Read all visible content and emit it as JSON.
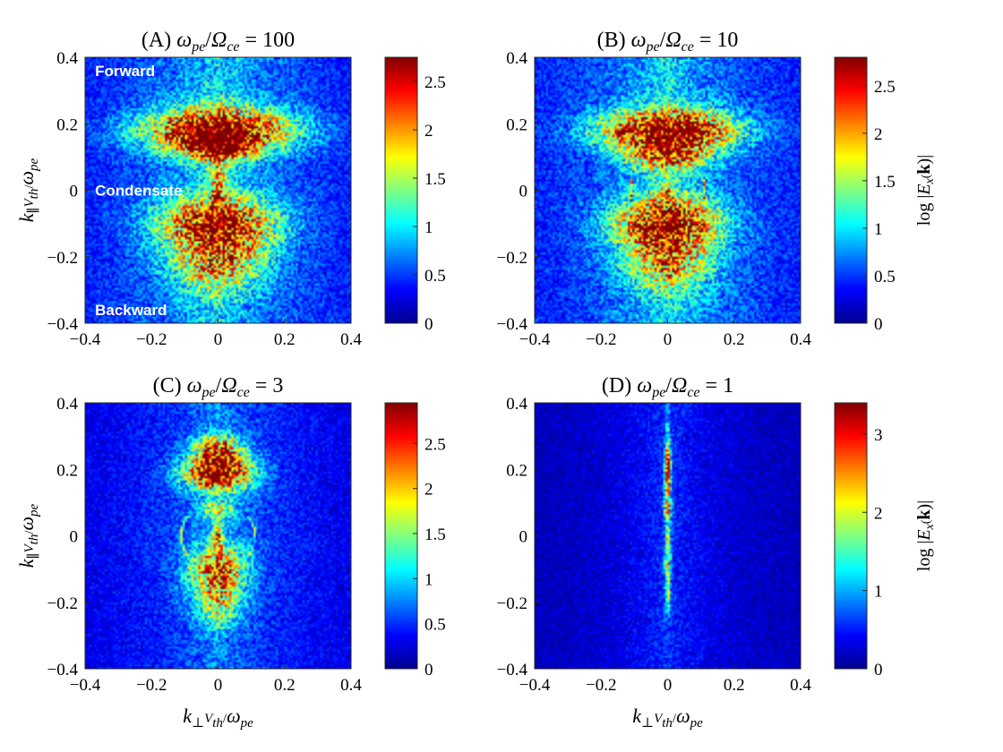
{
  "chart_data": [
    {
      "type": "heatmap",
      "panel": "A",
      "title": "(A) ωpe/Ωce = 100",
      "title_parts": {
        "prefix": "(A) ",
        "a": "ω",
        "a_sub": "pe",
        "b": "Ω",
        "b_sub": "ce",
        "eq": " = 100"
      },
      "xlabel": "",
      "ylabel": "k∥Vth/ωpe",
      "xlim": [
        -0.4,
        0.4
      ],
      "ylim": [
        -0.4,
        0.4
      ],
      "xticks": [
        "-0.4",
        "-0.2",
        "0",
        "0.2",
        "0.4"
      ],
      "yticks": [
        "0.4",
        "0.2",
        "0",
        "-0.2",
        "-0.4"
      ],
      "colorbar": {
        "range": [
          0,
          2.75
        ],
        "ticks": [
          "2.5",
          "2",
          "1.5",
          "1",
          "0.5",
          "0"
        ],
        "label": ""
      },
      "annotations": [
        {
          "text": "Forward",
          "x": -0.37,
          "y": 0.36
        },
        {
          "text": "Condensate",
          "x": -0.37,
          "y": 0.0
        },
        {
          "text": "Backward",
          "x": -0.37,
          "y": -0.36
        }
      ],
      "features": {
        "forward_peak": [
          0.0,
          0.18
        ],
        "backward_peak": [
          0.0,
          -0.11
        ]
      }
    },
    {
      "type": "heatmap",
      "panel": "B",
      "title": "(B) ωpe/Ωce = 10",
      "title_parts": {
        "prefix": "(B) ",
        "a": "ω",
        "a_sub": "pe",
        "b": "Ω",
        "b_sub": "ce",
        "eq": " = 10"
      },
      "xlabel": "",
      "ylabel": "",
      "xlim": [
        -0.4,
        0.4
      ],
      "ylim": [
        -0.4,
        0.4
      ],
      "xticks": [
        "-0.4",
        "-0.2",
        "0",
        "0.2",
        "0.4"
      ],
      "yticks": [
        "0.4",
        "0.2",
        "0",
        "-0.2",
        "-0.4"
      ],
      "colorbar": {
        "range": [
          0,
          2.8
        ],
        "ticks": [
          "2.5",
          "2",
          "1.5",
          "1",
          "0.5",
          "0"
        ],
        "label": "log |Ex(k)|"
      },
      "annotations": [],
      "features": {
        "forward_peak": [
          0.0,
          0.18
        ],
        "backward_peak": [
          0.0,
          -0.11
        ]
      }
    },
    {
      "type": "heatmap",
      "panel": "C",
      "title": "(C) ωpe/Ωce = 3",
      "title_parts": {
        "prefix": "(C) ",
        "a": "ω",
        "a_sub": "pe",
        "b": "Ω",
        "b_sub": "ce",
        "eq": " = 3"
      },
      "xlabel": "k⊥Vth/ωpe",
      "ylabel": "k∥Vth/ωpe",
      "xlim": [
        -0.4,
        0.4
      ],
      "ylim": [
        -0.4,
        0.4
      ],
      "xticks": [
        "-0.4",
        "-0.2",
        "0",
        "0.2",
        "0.4"
      ],
      "yticks": [
        "0.4",
        "0.2",
        "0",
        "-0.2",
        "-0.4"
      ],
      "colorbar": {
        "range": [
          0,
          2.95
        ],
        "ticks": [
          "2.5",
          "2",
          "1.5",
          "1",
          "0.5",
          "0"
        ],
        "label": ""
      },
      "annotations": [],
      "features": {
        "forward_peak": [
          0.0,
          0.18
        ],
        "backward_peak": [
          0.0,
          -0.1
        ]
      }
    },
    {
      "type": "heatmap",
      "panel": "D",
      "title": "(D) ωpe/Ωce = 1",
      "title_parts": {
        "prefix": "(D) ",
        "a": "ω",
        "a_sub": "pe",
        "b": "Ω",
        "b_sub": "ce",
        "eq": " = 1"
      },
      "xlabel": "k⊥Vth/ωpe",
      "ylabel": "",
      "xlim": [
        -0.4,
        0.4
      ],
      "ylim": [
        -0.4,
        0.4
      ],
      "xticks": [
        "-0.4",
        "-0.2",
        "0",
        "0.2",
        "0.4"
      ],
      "yticks": [
        "0.4",
        "0.2",
        "0",
        "-0.2",
        "-0.4"
      ],
      "colorbar": {
        "range": [
          0,
          3.4
        ],
        "ticks": [
          "3",
          "2",
          "1",
          "0"
        ],
        "label": "log |Ex(k)|"
      },
      "annotations": [],
      "features": {
        "forward_peak": [
          0.0,
          0.2
        ],
        "backward_peak": [
          0.0,
          -0.06
        ]
      }
    }
  ],
  "colormap": "jet",
  "colors": {
    "background": "#ffffff",
    "annotation_text": "#ffffff",
    "low": "#00008f",
    "high": "#800000"
  }
}
